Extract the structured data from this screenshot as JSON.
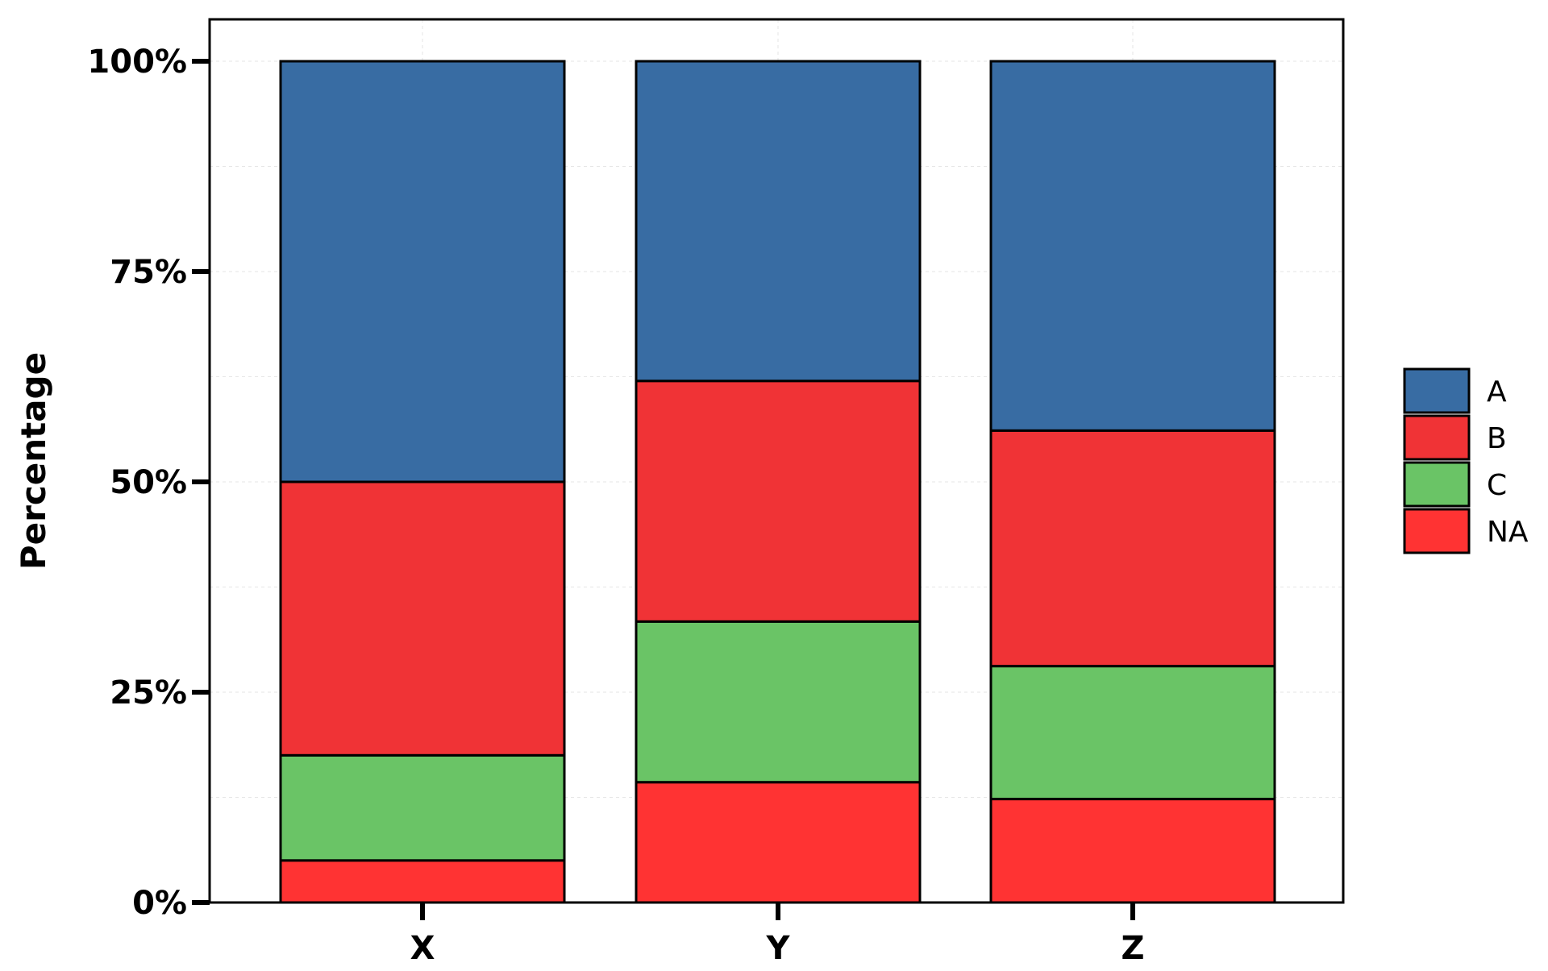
{
  "chart_data": {
    "type": "bar",
    "stacked": true,
    "categories": [
      "X",
      "Y",
      "Z"
    ],
    "series": [
      {
        "name": "NA",
        "values": [
          5,
          14.3,
          12.3
        ],
        "color": "#ff3333"
      },
      {
        "name": "C",
        "values": [
          12.5,
          19.1,
          15.8
        ],
        "color": "#6ac466"
      },
      {
        "name": "B",
        "values": [
          32.5,
          28.6,
          28.0
        ],
        "color": "#f03336"
      },
      {
        "name": "A",
        "values": [
          50,
          38.0,
          43.9
        ],
        "color": "#386ca3"
      }
    ],
    "legend_order": [
      "A",
      "B",
      "C",
      "NA"
    ],
    "title": "",
    "xlabel": "",
    "ylabel": "Percentage",
    "ylim": [
      0,
      100
    ],
    "yticks": [
      0,
      25,
      50,
      75,
      100
    ],
    "ytick_labels": [
      "0%",
      "25%",
      "50%",
      "75%",
      "100%"
    ],
    "grid": true,
    "legend_position": "right"
  }
}
